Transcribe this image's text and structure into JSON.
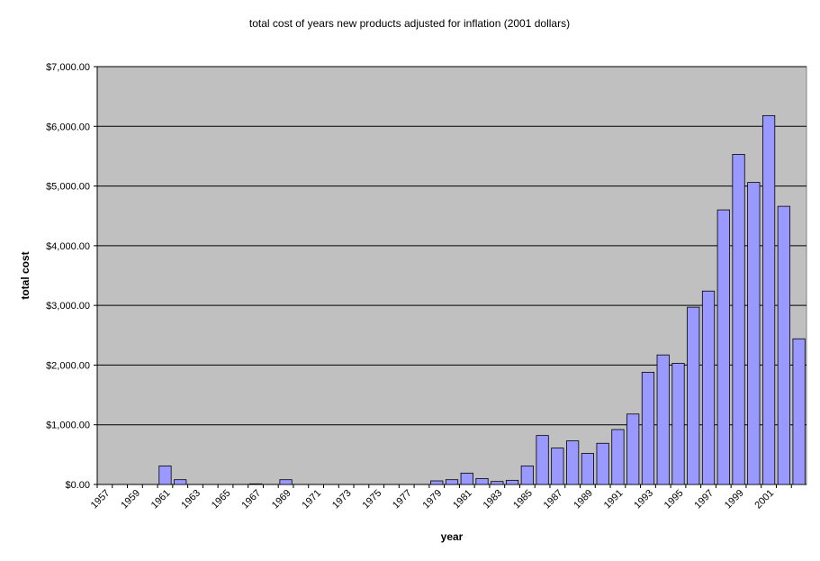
{
  "chart_data": {
    "type": "bar",
    "title": "total cost of years new products adjusted for inflation (2001 dollars)",
    "x_label": "year",
    "y_label": "total cost",
    "categories": [
      "1957",
      null,
      "1959",
      null,
      "1961",
      null,
      "1963",
      null,
      "1965",
      null,
      "1967",
      null,
      "1969",
      null,
      "1971",
      null,
      "1973",
      null,
      "1975",
      null,
      "1977",
      null,
      "1979",
      null,
      "1981",
      null,
      "1983",
      null,
      "1985",
      null,
      "1987",
      null,
      "1989",
      null,
      "1991",
      null,
      "1993",
      null,
      "1995",
      null,
      "1997",
      null,
      "1999",
      null,
      "2001",
      null,
      null
    ],
    "values": [
      0,
      0,
      0,
      0,
      310,
      80,
      0,
      0,
      0,
      0,
      10,
      0,
      80,
      0,
      0,
      0,
      0,
      0,
      0,
      0,
      0,
      0,
      60,
      80,
      190,
      100,
      50,
      70,
      310,
      820,
      610,
      730,
      520,
      690,
      920,
      1180,
      1880,
      2170,
      2030,
      2970,
      3240,
      4600,
      5530,
      5060,
      6180,
      4660,
      2440
    ],
    "color": "#9999ff",
    "plot_background": "#c0c0c0",
    "grid": true,
    "ylim": [
      0,
      7000
    ],
    "yticks": [
      {
        "value": 0,
        "label": "$0.00"
      },
      {
        "value": 1000,
        "label": "$1,000.00"
      },
      {
        "value": 2000,
        "label": "$2,000.00"
      },
      {
        "value": 3000,
        "label": "$3,000.00"
      },
      {
        "value": 4000,
        "label": "$4,000.00"
      },
      {
        "value": 5000,
        "label": "$5,000.00"
      },
      {
        "value": 6000,
        "label": "$6,000.00"
      },
      {
        "value": 7000,
        "label": "$7,000.00"
      }
    ]
  }
}
